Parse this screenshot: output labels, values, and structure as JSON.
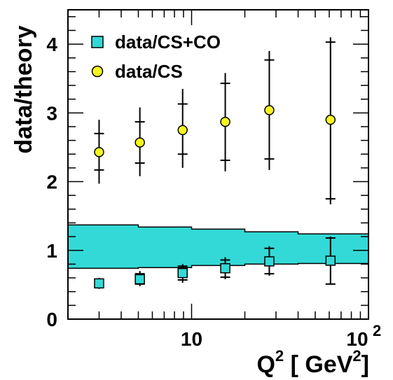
{
  "chart_data": {
    "type": "scatter",
    "x_scale": "log",
    "xlim": [
      2,
      100
    ],
    "ylim": [
      0,
      4.5
    ],
    "xlabel": {
      "base": "Q",
      "sup1": "2",
      "mid": " [ GeV",
      "sup2": "2",
      "end": "]"
    },
    "ylabel": "data/theory",
    "x_ticks": [
      {
        "value": 10,
        "label": "10"
      }
    ],
    "x_tick_100": {
      "base": "10",
      "exp": "2"
    },
    "y_ticks": [
      {
        "value": 0,
        "label": "0"
      },
      {
        "value": 1,
        "label": "1"
      },
      {
        "value": 2,
        "label": "2"
      },
      {
        "value": 3,
        "label": "3"
      },
      {
        "value": 4,
        "label": "4"
      }
    ],
    "legend": [
      {
        "name": "data/CS+CO",
        "marker": "square",
        "color": "#33d9d6"
      },
      {
        "name": "data/CS",
        "marker": "circle",
        "color": "#f5f51f"
      }
    ],
    "series": [
      {
        "name": "data/CS",
        "marker": "circle",
        "color": "#f5f51f",
        "points": [
          {
            "x": 3.0,
            "y": 2.43,
            "stat_err": [
              2.17,
              2.7
            ],
            "tot_err": [
              1.97,
              2.9
            ]
          },
          {
            "x": 5.1,
            "y": 2.57,
            "stat_err": [
              2.27,
              2.87
            ],
            "tot_err": [
              2.08,
              3.08
            ]
          },
          {
            "x": 8.9,
            "y": 2.75,
            "stat_err": [
              2.4,
              3.13
            ],
            "tot_err": [
              2.2,
              3.35
            ]
          },
          {
            "x": 15.5,
            "y": 2.87,
            "stat_err": [
              2.31,
              3.43
            ],
            "tot_err": [
              2.15,
              3.58
            ]
          },
          {
            "x": 27.5,
            "y": 3.04,
            "stat_err": [
              2.33,
              3.77
            ],
            "tot_err": [
              2.17,
              3.9
            ]
          },
          {
            "x": 61,
            "y": 2.9,
            "stat_err": [
              1.75,
              4.03
            ],
            "tot_err": [
              1.67,
              4.1
            ]
          }
        ]
      },
      {
        "name": "data/CS+CO",
        "marker": "square",
        "color": "#33d9d6",
        "points": [
          {
            "x": 3.0,
            "y": 0.52,
            "stat_err": [
              0.47,
              0.57
            ],
            "tot_err": [
              0.44,
              0.6
            ]
          },
          {
            "x": 5.1,
            "y": 0.58,
            "stat_err": [
              0.51,
              0.66
            ],
            "tot_err": [
              0.48,
              0.7
            ]
          },
          {
            "x": 8.9,
            "y": 0.67,
            "stat_err": [
              0.57,
              0.77
            ],
            "tot_err": [
              0.53,
              0.8
            ]
          },
          {
            "x": 15.5,
            "y": 0.74,
            "stat_err": [
              0.61,
              0.86
            ],
            "tot_err": [
              0.58,
              0.9
            ]
          },
          {
            "x": 27.5,
            "y": 0.84,
            "stat_err": [
              0.66,
              1.03
            ],
            "tot_err": [
              0.63,
              1.06
            ]
          },
          {
            "x": 61,
            "y": 0.85,
            "stat_err": [
              0.51,
              1.18
            ],
            "tot_err": [
              0.5,
              1.2
            ]
          }
        ]
      }
    ],
    "band": {
      "color": "#33d9d6",
      "steps": [
        {
          "x0": 2,
          "x1": 5,
          "low": 0.74,
          "high": 1.37
        },
        {
          "x0": 5,
          "x1": 10,
          "low": 0.75,
          "high": 1.34
        },
        {
          "x0": 10,
          "x1": 20,
          "low": 0.78,
          "high": 1.31
        },
        {
          "x0": 20,
          "x1": 40,
          "low": 0.8,
          "high": 1.27
        },
        {
          "x0": 40,
          "x1": 100,
          "low": 0.81,
          "high": 1.24
        }
      ]
    }
  }
}
